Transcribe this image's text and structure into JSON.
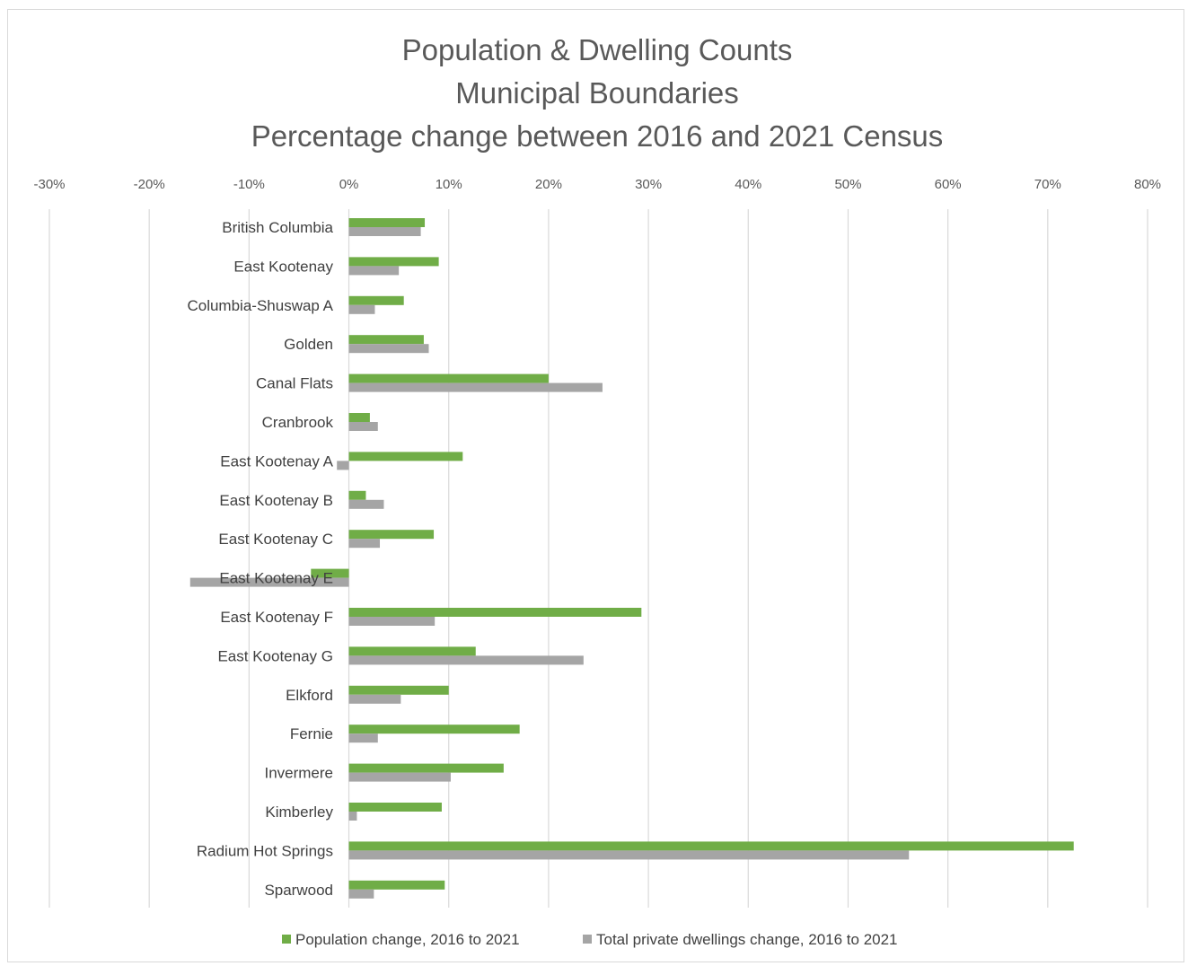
{
  "chart_data": {
    "type": "bar",
    "orientation": "horizontal",
    "title": "Population & Dwelling Counts\nMunicipal Boundaries\nPercentage change between 2016 and 2021 Census",
    "title_lines": [
      "Population & Dwelling Counts",
      "Municipal Boundaries",
      "Percentage change between 2016 and 2021 Census"
    ],
    "xlim": [
      -30,
      80
    ],
    "x_ticks": [
      -30,
      -20,
      -10,
      0,
      10,
      20,
      30,
      40,
      50,
      60,
      70,
      80
    ],
    "x_tick_labels": [
      "-30%",
      "-20%",
      "-10%",
      "0%",
      "10%",
      "20%",
      "30%",
      "40%",
      "50%",
      "60%",
      "70%",
      "80%"
    ],
    "x_axis_position": "top",
    "grid": true,
    "legend_position": "bottom",
    "categories": [
      "British Columbia",
      "East Kootenay",
      "Columbia-Shuswap A",
      "Golden",
      "Canal Flats",
      "Cranbrook",
      "East Kootenay A",
      "East Kootenay B",
      "East Kootenay C",
      "East Kootenay E",
      "East Kootenay F",
      "East Kootenay G",
      "Elkford",
      "Fernie",
      "Invermere",
      "Kimberley",
      "Radium Hot Springs",
      "Sparwood"
    ],
    "series": [
      {
        "name": "Population change, 2016 to 2021",
        "color": "#70ad47",
        "values": [
          7.6,
          9.0,
          5.5,
          7.5,
          20.0,
          2.1,
          11.4,
          1.7,
          8.5,
          -3.8,
          29.3,
          12.7,
          10.0,
          17.1,
          15.5,
          9.3,
          72.6,
          9.6
        ]
      },
      {
        "name": "Total private dwellings change, 2016 to 2021",
        "color": "#a5a5a5",
        "values": [
          7.2,
          5.0,
          2.6,
          8.0,
          25.4,
          2.9,
          -1.2,
          3.5,
          3.1,
          -15.9,
          8.6,
          23.5,
          5.2,
          2.9,
          10.2,
          0.8,
          56.1,
          2.5
        ]
      }
    ]
  }
}
